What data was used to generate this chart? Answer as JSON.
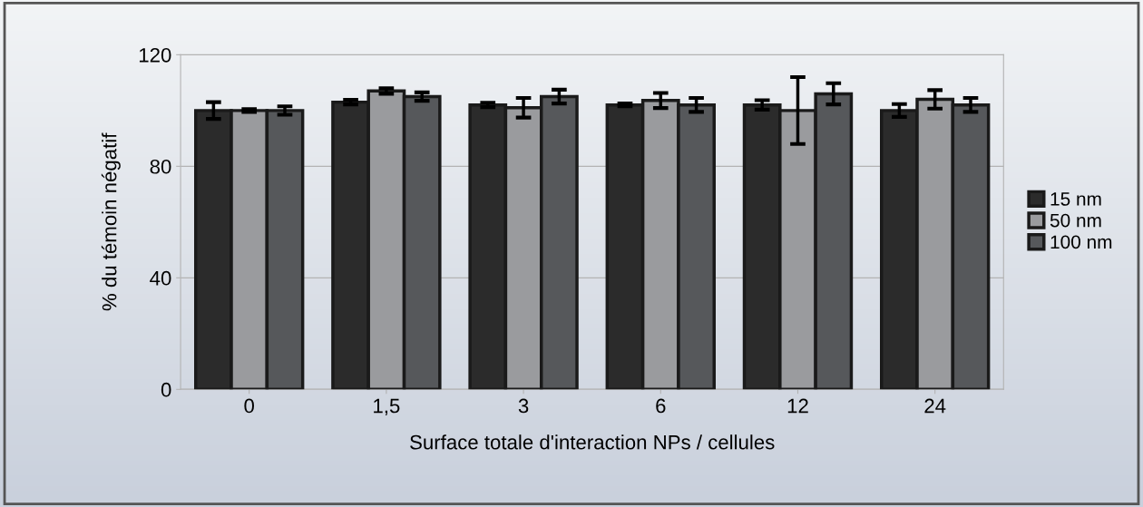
{
  "chart_data": {
    "type": "bar",
    "xlabel": "Surface totale d'interaction NPs / cellules",
    "ylabel": "% du témoin négatif",
    "categories": [
      "0",
      "1,5",
      "3",
      "6",
      "12",
      "24"
    ],
    "series": [
      {
        "name": "15 nm",
        "color": "#2b2b2b",
        "values": [
          100,
          103,
          102,
          102,
          102,
          100
        ],
        "errors": [
          3,
          0.8,
          0.8,
          0.5,
          1.7,
          2.3
        ]
      },
      {
        "name": "50 nm",
        "color": "#9a9b9e",
        "values": [
          100,
          107,
          101,
          103.6,
          100,
          104
        ],
        "errors": [
          0.5,
          1,
          3.5,
          2.7,
          12,
          3.3
        ]
      },
      {
        "name": "100 nm",
        "color": "#56585b",
        "values": [
          100,
          105,
          105,
          102,
          106,
          102
        ],
        "errors": [
          1.5,
          1.5,
          2.5,
          2.5,
          3.8,
          2.5
        ]
      }
    ],
    "ylim": [
      0,
      120
    ],
    "yticks": [
      0,
      40,
      80,
      120
    ],
    "grid": "y",
    "legend": "right"
  }
}
